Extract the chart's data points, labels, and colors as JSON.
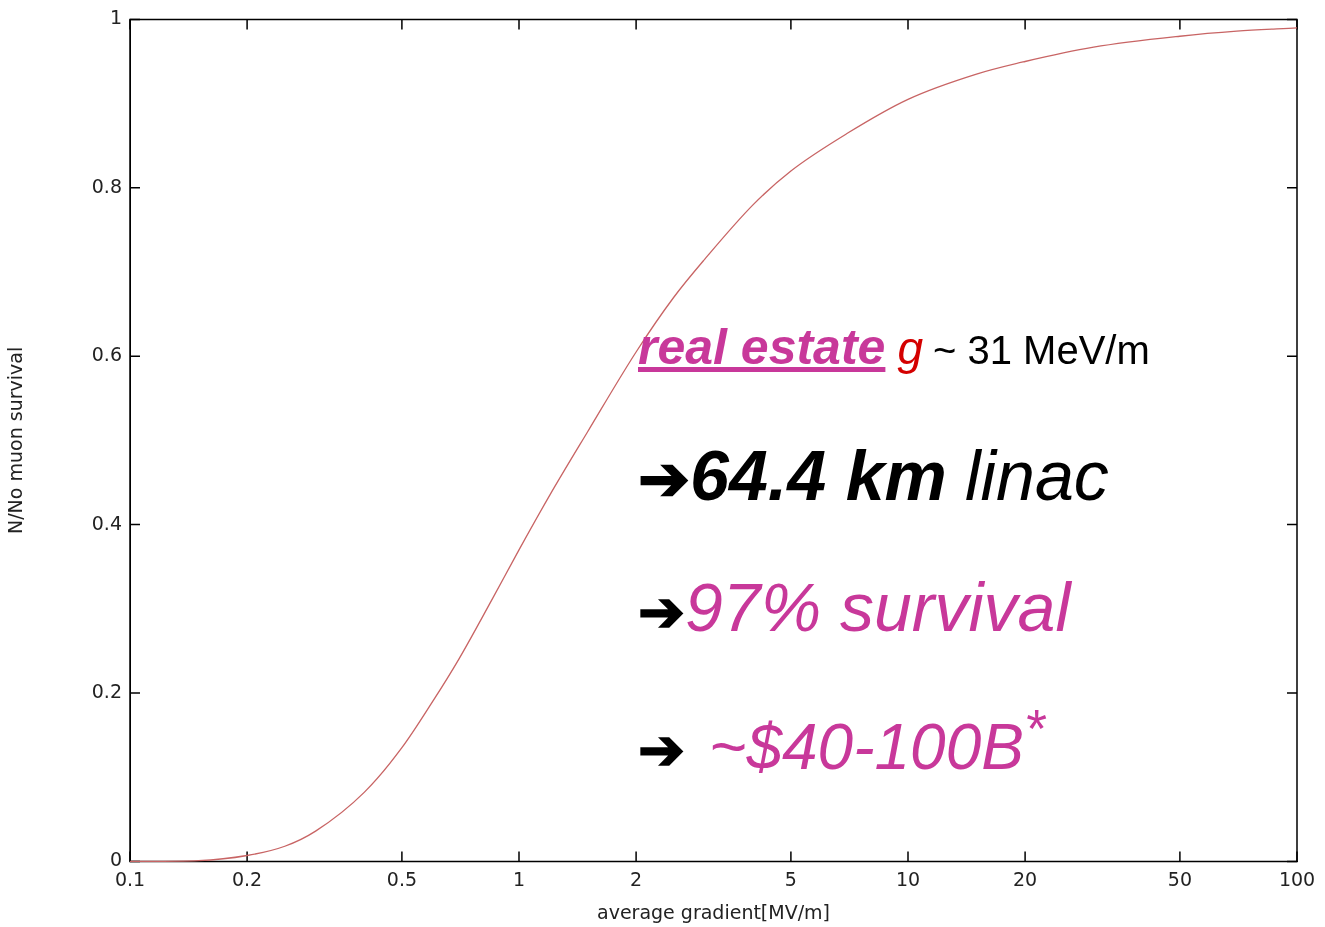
{
  "chart_data": {
    "type": "line",
    "xlabel": "average gradient[MV/m]",
    "ylabel": "N/No muon survival",
    "x": [
      0.1,
      0.15,
      0.2,
      0.25,
      0.3,
      0.4,
      0.5,
      0.6,
      0.7,
      0.85,
      1,
      1.2,
      1.5,
      2,
      2.5,
      3,
      4,
      5,
      7,
      10,
      15,
      20,
      30,
      50,
      70,
      100
    ],
    "series": [
      {
        "color": "#c86464",
        "values": [
          0,
          0.001,
          0.007,
          0.018,
          0.036,
          0.082,
          0.135,
          0.19,
          0.24,
          0.31,
          0.37,
          0.435,
          0.51,
          0.605,
          0.67,
          0.715,
          0.78,
          0.82,
          0.865,
          0.905,
          0.935,
          0.95,
          0.967,
          0.98,
          0.986,
          0.99
        ]
      }
    ],
    "log": "x",
    "xlim": [
      0.1,
      100
    ],
    "xticks": [
      0.1,
      0.2,
      0.5,
      1,
      2,
      5,
      10,
      20,
      50,
      100
    ],
    "ylim": [
      0,
      1
    ],
    "yticks": [
      0,
      0.2,
      0.4,
      0.6,
      0.8,
      1
    ],
    "grid": false,
    "legend": false,
    "marker": "none",
    "line_style": "solid",
    "annotations": [
      "real estate",
      "g",
      "~ 31 MeV/m",
      "➔",
      "64.4 km",
      "linac",
      "➔",
      "97% survival",
      "➔",
      "~$40-100B$^{*}$"
    ]
  }
}
